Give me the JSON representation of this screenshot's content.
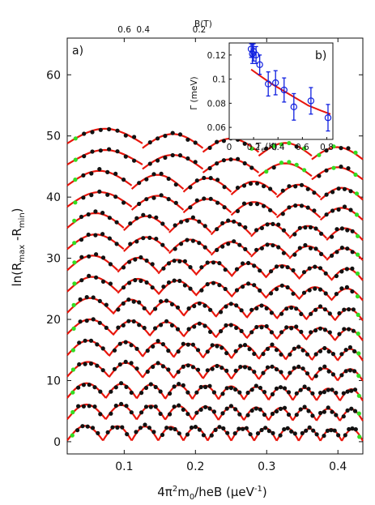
{
  "chart_data": [
    {
      "type": "scatter",
      "panel_label": "a)",
      "xlabel_main": "4π",
      "xlabel_sup": "2",
      "xlabel_rest": "m",
      "xlabel_sub": "0",
      "xlabel_tail": "/heB (μeV",
      "xlabel_sup2": "-1",
      "xlabel_close": ")",
      "ylabel_main": "ln(R",
      "ylabel_sub1": "max",
      "ylabel_mid": " -R",
      "ylabel_sub2": "min",
      "ylabel_close": ")",
      "top_axis_label": "B(T)",
      "top_ticks": [
        {
          "label": "0.6",
          "x": 0.0525
        },
        {
          "label": "0.4",
          "x": 0.0788
        },
        {
          "label": "0.2",
          "x": 0.1576
        }
      ],
      "xlim": [
        0.02,
        0.435
      ],
      "ylim": [
        -2,
        66
      ],
      "x_ticks": [
        {
          "value": 0.1,
          "label": "0.1"
        },
        {
          "value": 0.2,
          "label": "0.2"
        },
        {
          "value": 0.3,
          "label": "0.3"
        },
        {
          "value": 0.4,
          "label": "0.4"
        }
      ],
      "y_ticks": [
        {
          "value": 0,
          "label": "0"
        },
        {
          "value": 10,
          "label": "10"
        },
        {
          "value": 20,
          "label": "20"
        },
        {
          "value": 30,
          "label": "30"
        },
        {
          "value": 40,
          "label": "40"
        },
        {
          "value": 50,
          "label": "50"
        },
        {
          "value": 60,
          "label": "60"
        }
      ],
      "trace_offsets": [
        50,
        46.5,
        43,
        39.5,
        36,
        32.5,
        29,
        25.5,
        22,
        18.5,
        15,
        11.5,
        8,
        4.5,
        1
      ],
      "colors": {
        "fit": "#e8160c",
        "data": "#111111",
        "data_alt": "#33dd22",
        "errorbar": "#1020e0"
      }
    },
    {
      "type": "scatter",
      "panel_label": "b)",
      "ylabel": "Γ (meV)",
      "xlabel_main": "T",
      "xlabel_sub": "e",
      "xlabel_rest": "(K)",
      "xlim": [
        0,
        0.85
      ],
      "ylim": [
        0.05,
        0.13
      ],
      "x_ticks": [
        {
          "value": 0,
          "label": "0"
        },
        {
          "value": 0.2,
          "label": "0.2"
        },
        {
          "value": 0.4,
          "label": "0.4"
        },
        {
          "value": 0.6,
          "label": "0.6"
        },
        {
          "value": 0.8,
          "label": "0.8"
        }
      ],
      "y_ticks": [
        {
          "value": 0.06,
          "label": "0.06"
        },
        {
          "value": 0.08,
          "label": "0.08"
        },
        {
          "value": 0.1,
          "label": "0.1"
        },
        {
          "value": 0.12,
          "label": "0.12"
        }
      ],
      "points": [
        {
          "x": 0.18,
          "y": 0.125,
          "err": 0.007
        },
        {
          "x": 0.19,
          "y": 0.121,
          "err": 0.008
        },
        {
          "x": 0.2,
          "y": 0.123,
          "err": 0.008
        },
        {
          "x": 0.22,
          "y": 0.12,
          "err": 0.007
        },
        {
          "x": 0.25,
          "y": 0.112,
          "err": 0.008
        },
        {
          "x": 0.32,
          "y": 0.096,
          "err": 0.01
        },
        {
          "x": 0.38,
          "y": 0.097,
          "err": 0.01
        },
        {
          "x": 0.45,
          "y": 0.091,
          "err": 0.01
        },
        {
          "x": 0.53,
          "y": 0.077,
          "err": 0.011
        },
        {
          "x": 0.67,
          "y": 0.082,
          "err": 0.011
        },
        {
          "x": 0.81,
          "y": 0.068,
          "err": 0.011
        }
      ],
      "fit_curve": [
        {
          "x": 0.18,
          "y": 0.108
        },
        {
          "x": 0.25,
          "y": 0.103
        },
        {
          "x": 0.35,
          "y": 0.096
        },
        {
          "x": 0.45,
          "y": 0.09
        },
        {
          "x": 0.55,
          "y": 0.084
        },
        {
          "x": 0.65,
          "y": 0.078
        },
        {
          "x": 0.75,
          "y": 0.074
        },
        {
          "x": 0.83,
          "y": 0.071
        }
      ]
    }
  ]
}
